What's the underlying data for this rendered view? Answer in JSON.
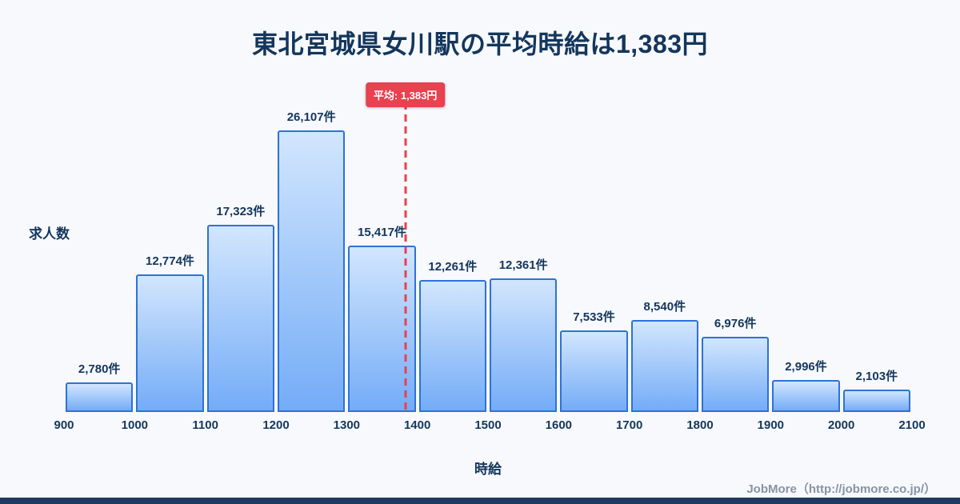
{
  "title": "東北宮城県女川駅の平均時給は1,383円",
  "axes": {
    "y_label": "求人数",
    "x_label": "時給"
  },
  "average": {
    "badge_label": "平均: 1,383円",
    "value": 1383
  },
  "footer": {
    "credit": "JobMore（http://jobmore.co.jp/）"
  },
  "colors": {
    "background": "#f7f9fd",
    "title": "#14365c",
    "text": "#1d3b63",
    "accent_red": "#e8414f",
    "bar_border": "#2d72d9",
    "bar_fill_top": "#d2e6fd",
    "bar_fill_bottom": "#74acf7",
    "footer_text": "#8a93a3",
    "bottom_bar": "#1e3a5f"
  },
  "chart_data": {
    "type": "bar",
    "title": "東北宮城県女川駅の平均時給は1,383円",
    "xlabel": "時給",
    "ylabel": "求人数",
    "bin_edges": [
      900,
      1000,
      1100,
      1200,
      1300,
      1400,
      1500,
      1600,
      1700,
      1800,
      1900,
      2000,
      2100
    ],
    "categories": [
      "900-1000",
      "1000-1100",
      "1100-1200",
      "1200-1300",
      "1300-1400",
      "1400-1500",
      "1500-1600",
      "1600-1700",
      "1700-1800",
      "1800-1900",
      "1900-2000",
      "2000-2100"
    ],
    "values": [
      2780,
      12774,
      17323,
      26107,
      15417,
      12261,
      12361,
      7533,
      8540,
      6976,
      2996,
      2103
    ],
    "bar_labels": [
      "2,780件",
      "12,774件",
      "17,323件",
      "26,107件",
      "15,417件",
      "12,261件",
      "12,361件",
      "7,533件",
      "8,540件",
      "6,976件",
      "2,996件",
      "2,103件"
    ],
    "x_tick_labels": [
      "900",
      "1000",
      "1100",
      "1200",
      "1300",
      "1400",
      "1500",
      "1600",
      "1700",
      "1800",
      "1900",
      "2000",
      "2100"
    ],
    "average_line": {
      "x": 1383,
      "label": "平均: 1,383円"
    },
    "ylim": [
      0,
      27500
    ],
    "grid": false,
    "legend": "none"
  }
}
